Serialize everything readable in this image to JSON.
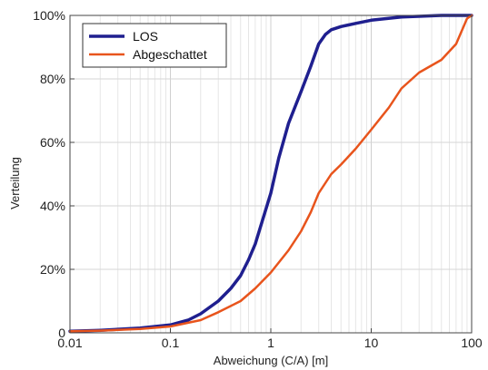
{
  "chart_data": {
    "type": "line",
    "xscale": "log",
    "xlim": [
      0.01,
      100
    ],
    "ylim": [
      0,
      100
    ],
    "xlabel": "Abweichung (C/A) [m]",
    "ylabel": "Verteilung",
    "grid": true,
    "legend_position": "top-left",
    "x_ticks": [
      0.01,
      0.1,
      1,
      10,
      100
    ],
    "x_tick_labels": [
      "0.01",
      "0.1",
      "1",
      "10",
      "100"
    ],
    "y_ticks": [
      0,
      20,
      40,
      60,
      80,
      100
    ],
    "y_tick_labels": [
      "0",
      "20%",
      "40%",
      "60%",
      "80%",
      "100%"
    ],
    "series": [
      {
        "name": "LOS",
        "color": "#1f1f8f",
        "points": [
          [
            0.01,
            0.5
          ],
          [
            0.02,
            0.8
          ],
          [
            0.05,
            1.5
          ],
          [
            0.1,
            2.5
          ],
          [
            0.15,
            4
          ],
          [
            0.2,
            6
          ],
          [
            0.3,
            10
          ],
          [
            0.4,
            14
          ],
          [
            0.5,
            18
          ],
          [
            0.6,
            23
          ],
          [
            0.7,
            28
          ],
          [
            0.8,
            34
          ],
          [
            1,
            44
          ],
          [
            1.2,
            55
          ],
          [
            1.5,
            66
          ],
          [
            2,
            76
          ],
          [
            2.5,
            84
          ],
          [
            3,
            91
          ],
          [
            3.5,
            94
          ],
          [
            4,
            95.5
          ],
          [
            5,
            96.5
          ],
          [
            7,
            97.5
          ],
          [
            10,
            98.5
          ],
          [
            20,
            99.5
          ],
          [
            50,
            100
          ],
          [
            100,
            100
          ]
        ]
      },
      {
        "name": "Abgeschattet",
        "color": "#e8541c",
        "points": [
          [
            0.01,
            0.5
          ],
          [
            0.02,
            0.7
          ],
          [
            0.05,
            1.2
          ],
          [
            0.1,
            2
          ],
          [
            0.2,
            4
          ],
          [
            0.3,
            6.5
          ],
          [
            0.5,
            10
          ],
          [
            0.7,
            14
          ],
          [
            1,
            19
          ],
          [
            1.5,
            26
          ],
          [
            2,
            32
          ],
          [
            2.5,
            38
          ],
          [
            3,
            44
          ],
          [
            4,
            50
          ],
          [
            5,
            53
          ],
          [
            7,
            58
          ],
          [
            10,
            64
          ],
          [
            15,
            71
          ],
          [
            20,
            77
          ],
          [
            30,
            82
          ],
          [
            50,
            86
          ],
          [
            70,
            91
          ],
          [
            90,
            99
          ],
          [
            100,
            100
          ]
        ]
      }
    ]
  }
}
